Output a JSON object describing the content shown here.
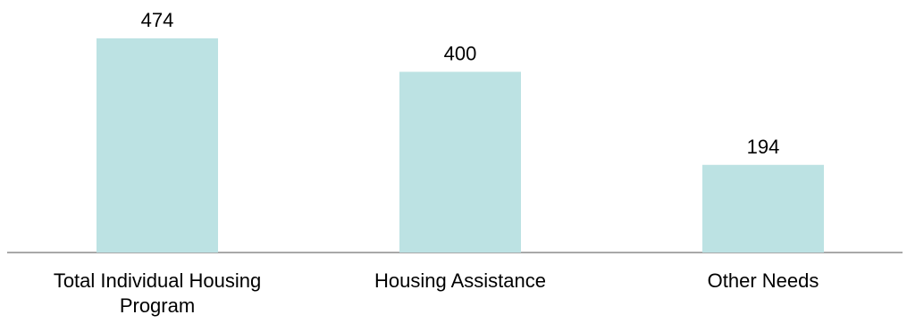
{
  "chart_data": {
    "type": "bar",
    "categories": [
      [
        "Total Individual Housing",
        "Program"
      ],
      [
        "Housing Assistance"
      ],
      [
        "Other Needs"
      ]
    ],
    "values": [
      474,
      400,
      194
    ],
    "data_labels": [
      "474",
      "400",
      "194"
    ],
    "ylim": [
      0,
      474
    ],
    "grid": false,
    "legend": "none",
    "colors": {
      "bar": "#bce2e3",
      "axis": "#8c8c8c"
    }
  }
}
